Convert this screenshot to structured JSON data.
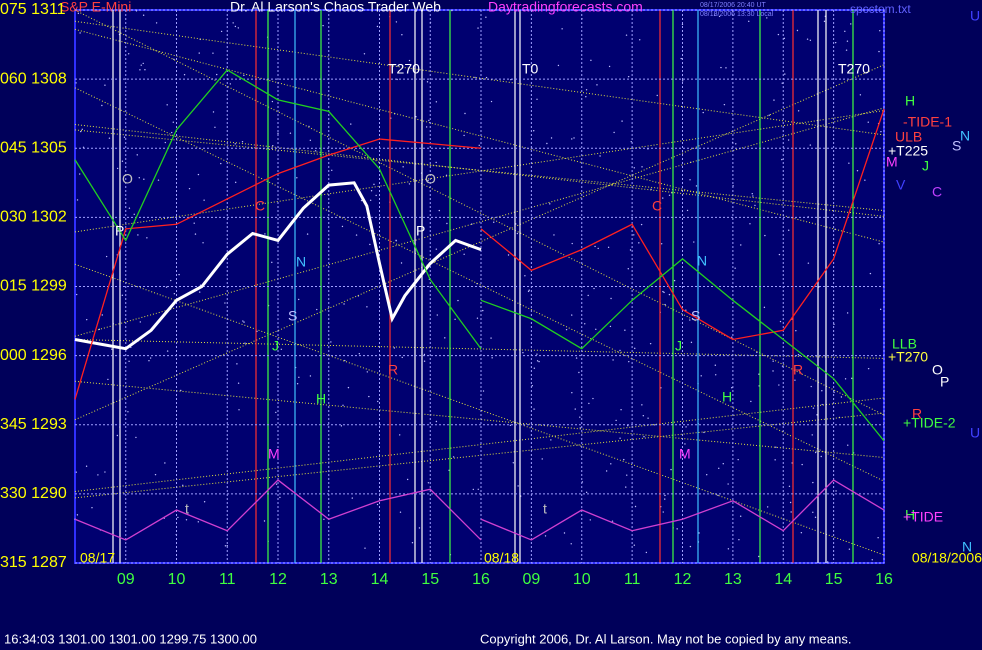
{
  "chart_data": {
    "type": "line",
    "title": "Dr. Al Larson's Chaos Trader Web",
    "subtitle": "S&P E-Mini",
    "site": "Daytradingforecasts.com",
    "file": "spcctom.txt",
    "stamps": [
      "08/17/2006 20:40 UT",
      "08/18/2006 13:30 Local"
    ],
    "ylim": [
      1287,
      1311
    ],
    "yticks": [
      {
        "value": 1311,
        "label": "075 1311"
      },
      {
        "value": 1308,
        "label": "060 1308"
      },
      {
        "value": 1305,
        "label": "045 1305"
      },
      {
        "value": 1302,
        "label": "030 1302"
      },
      {
        "value": 1299,
        "label": "015 1299"
      },
      {
        "value": 1296,
        "label": "000 1296"
      },
      {
        "value": 1293,
        "label": "345 1293"
      },
      {
        "value": 1290,
        "label": "330 1290"
      },
      {
        "value": 1287,
        "label": "315 1287"
      }
    ],
    "xlim": [
      8,
      16
    ],
    "xticks": [
      {
        "value": 9,
        "label": "09"
      },
      10,
      11,
      12,
      13,
      14,
      15,
      16
    ],
    "grid": true,
    "days": [
      {
        "date": "08/17",
        "series": [
          {
            "color": "#ffffff",
            "x": [
              8,
              8.5,
              9,
              9.5,
              10,
              10.5,
              11,
              11.5,
              12,
              12.5,
              13,
              13.5,
              13.75,
              14,
              14.25,
              14.5,
              15,
              15.5,
              16
            ],
            "values": [
              1296.7,
              1296.5,
              1296.3,
              1297.1,
              1298.4,
              1299.0,
              1300.4,
              1301.3,
              1301.0,
              1302.4,
              1303.4,
              1303.5,
              1302.5,
              1300.0,
              1297.6,
              1298.6,
              1300.0,
              1301.0,
              1300.6
            ]
          },
          {
            "color": "#ff2020",
            "x": [
              8,
              9,
              10,
              11,
              12,
              13,
              14,
              15,
              16
            ],
            "values": [
              1294.1,
              1301.5,
              1301.7,
              1302.8,
              1303.9,
              1304.7,
              1305.4,
              1305.2,
              1305.0
            ]
          },
          {
            "color": "#20d020",
            "x": [
              8,
              9,
              10,
              11,
              12,
              13,
              14,
              15,
              16
            ],
            "values": [
              1304.5,
              1301.0,
              1305.8,
              1308.4,
              1307.1,
              1306.6,
              1304.1,
              1299.3,
              1296.3
            ]
          },
          {
            "color": "#d040d0",
            "x": [
              8,
              9,
              10,
              11,
              12,
              13,
              14,
              15,
              16
            ],
            "values": [
              1288.9,
              1288.0,
              1289.3,
              1288.4,
              1290.6,
              1288.9,
              1289.7,
              1290.2,
              1288.0
            ]
          }
        ]
      },
      {
        "date": "08/18",
        "series": [
          {
            "color": "#ff2020",
            "x": [
              8,
              9,
              10,
              11,
              12,
              13,
              14,
              15,
              16
            ],
            "values": [
              1301.5,
              1299.7,
              1300.6,
              1301.7,
              1298.0,
              1296.7,
              1297.1,
              1300.2,
              1306.7
            ]
          },
          {
            "color": "#20d020",
            "x": [
              8,
              9,
              10,
              11,
              12,
              13,
              14,
              15,
              16
            ],
            "values": [
              1298.4,
              1297.6,
              1296.3,
              1298.4,
              1300.2,
              1298.4,
              1296.7,
              1295.0,
              1292.3
            ]
          },
          {
            "color": "#d040d0",
            "x": [
              8,
              9,
              10,
              11,
              12,
              13,
              14,
              15,
              16
            ],
            "values": [
              1288.9,
              1288.0,
              1289.3,
              1288.4,
              1288.9,
              1289.7,
              1288.4,
              1290.6,
              1289.3
            ]
          }
        ]
      }
    ],
    "end_date": "08/18/2006",
    "annotations": [
      "T270",
      "T0",
      "T270",
      "H",
      "-TIDE-1",
      "ULB",
      "+T225",
      "M",
      "V",
      "N",
      "S",
      "J",
      "C",
      "LLB",
      "+T270",
      "O",
      "P",
      "R",
      "+TIDE-2",
      "H",
      "+TIDE",
      "N",
      "U",
      "U",
      "O",
      "P",
      "C",
      "N",
      "S",
      "J",
      "H",
      "R",
      "M",
      "t",
      "O",
      "P",
      "C",
      "N",
      "S",
      "J",
      "H",
      "R",
      "M",
      "t"
    ],
    "status": "16:34:03  1301.00 1301.00 1299.75 1300.00",
    "copyright": "Copyright 2006, Dr. Al Larson. May not be copied by any means."
  }
}
